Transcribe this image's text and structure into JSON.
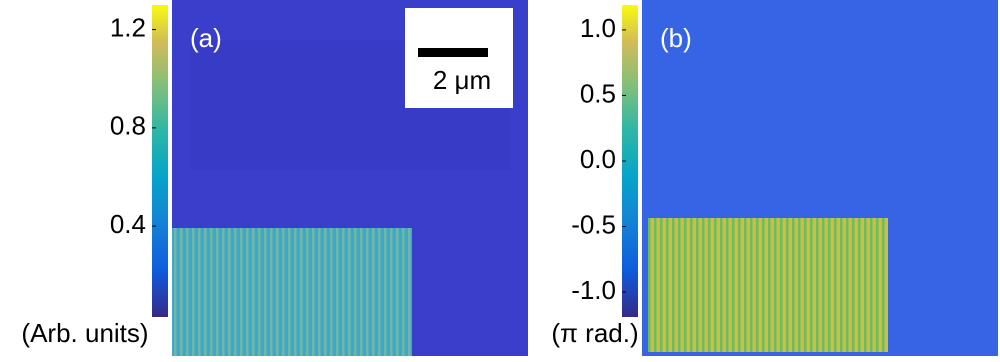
{
  "chart_data": [
    {
      "type": "colormap-image",
      "panel_label": "(a)",
      "colorbar_label": "(Arb. units)",
      "scale_bar": "2 μm",
      "ylim": [
        0.03,
        1.3
      ],
      "yticks": [
        0.4,
        0.8,
        1.2
      ]
    },
    {
      "type": "colormap-image",
      "panel_label": "(b)",
      "colorbar_label": "(π rad.)",
      "ylim": [
        -1.19,
        1.19
      ],
      "yticks": [
        {
          "value": -1.0,
          "label": "-1.0"
        },
        {
          "value": -0.5,
          "label": "-0.5"
        },
        {
          "value": 0,
          "label": "0.0"
        },
        {
          "value": 0.5,
          "label": "0.5"
        },
        {
          "value": 1.0,
          "label": "1.0"
        }
      ]
    }
  ]
}
